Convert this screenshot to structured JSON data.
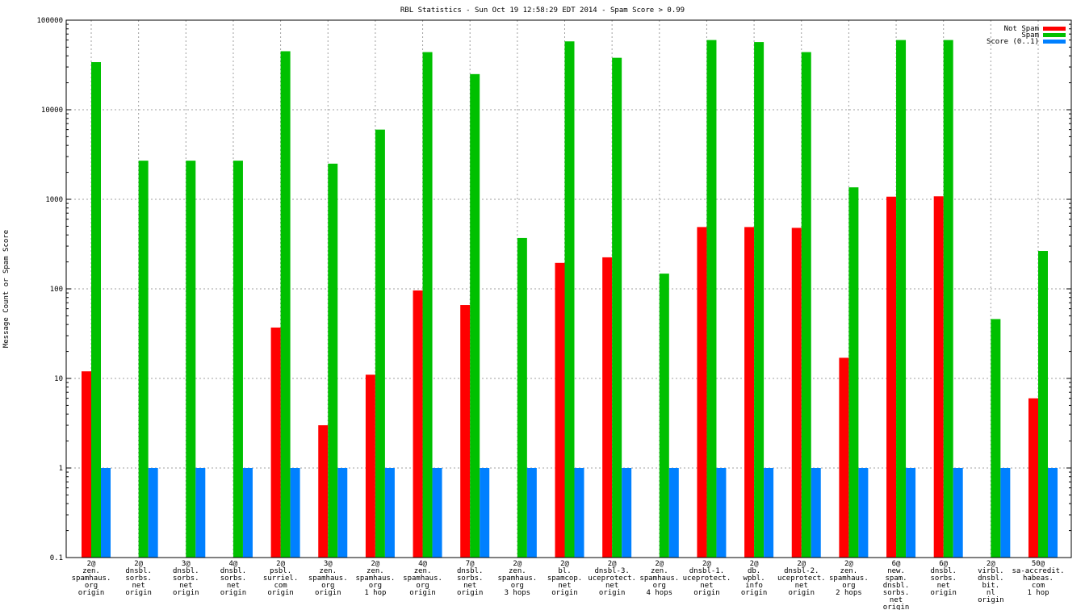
{
  "chart_data": {
    "type": "bar",
    "title": "RBL Statistics - Sun Oct 19 12:58:29 EDT 2014 - Spam Score > 0.99",
    "xlabel": "",
    "ylabel": "Message Count or Spam Score",
    "yscale": "log",
    "ylim": [
      0.1,
      100000
    ],
    "yticks": [
      "0.1",
      "1",
      "10",
      "100",
      "1000",
      "10000",
      "100000"
    ],
    "grid": true,
    "legend_position": "top-right",
    "categories": [
      [
        "2@",
        "zen.",
        "spamhaus.",
        "org",
        "origin"
      ],
      [
        "2@",
        "dnsbl.",
        "sorbs.",
        "net",
        "origin"
      ],
      [
        "3@",
        "dnsbl.",
        "sorbs.",
        "net",
        "origin"
      ],
      [
        "4@",
        "dnsbl.",
        "sorbs.",
        "net",
        "origin"
      ],
      [
        "2@",
        "psbl.",
        "surriel.",
        "com",
        "origin"
      ],
      [
        "3@",
        "zen.",
        "spamhaus.",
        "org",
        "origin"
      ],
      [
        "2@",
        "zen.",
        "spamhaus.",
        "org",
        "1 hop"
      ],
      [
        "4@",
        "zen.",
        "spamhaus.",
        "org",
        "origin"
      ],
      [
        "7@",
        "dnsbl.",
        "sorbs.",
        "net",
        "origin"
      ],
      [
        "2@",
        "zen.",
        "spamhaus.",
        "org",
        "3 hops"
      ],
      [
        "2@",
        "bl.",
        "spamcop.",
        "net",
        "origin"
      ],
      [
        "2@",
        "dnsbl-3.",
        "uceprotect.",
        "net",
        "origin"
      ],
      [
        "2@",
        "zen.",
        "spamhaus.",
        "org",
        "4 hops"
      ],
      [
        "2@",
        "dnsbl-1.",
        "uceprotect.",
        "net",
        "origin"
      ],
      [
        "2@",
        "db.",
        "wpbl.",
        "info",
        "origin"
      ],
      [
        "2@",
        "dnsbl-2.",
        "uceprotect.",
        "net",
        "origin"
      ],
      [
        "2@",
        "zen.",
        "spamhaus.",
        "org",
        "2 hops"
      ],
      [
        "6@",
        "new.",
        "spam.",
        "dnsbl.",
        "sorbs.",
        "net",
        "origin"
      ],
      [
        "6@",
        "dnsbl.",
        "sorbs.",
        "net",
        "origin"
      ],
      [
        "2@",
        "virbl.",
        "dnsbl.",
        "bit.",
        "nl",
        "origin"
      ],
      [
        "50@",
        "sa-accredit.",
        "habeas.",
        "com",
        "1 hop"
      ]
    ],
    "series": [
      {
        "name": "Not Spam",
        "color": "#ff0000",
        "values": [
          12,
          null,
          null,
          null,
          37,
          3,
          11,
          96,
          66,
          null,
          195,
          225,
          null,
          490,
          490,
          480,
          17,
          1070,
          1080,
          null,
          6
        ]
      },
      {
        "name": "Spam",
        "color": "#00c000",
        "values": [
          34000,
          2700,
          2700,
          2700,
          45000,
          2500,
          6000,
          44000,
          25000,
          370,
          58000,
          38000,
          148,
          60000,
          57000,
          44000,
          1360,
          60000,
          60000,
          46,
          265
        ]
      },
      {
        "name": "Score (0..1)",
        "color": "#0080ff",
        "values": [
          1,
          1,
          1,
          1,
          1,
          1,
          1,
          1,
          1,
          1,
          1,
          1,
          1,
          1,
          1,
          1,
          1,
          1,
          1,
          1,
          1
        ]
      }
    ]
  }
}
